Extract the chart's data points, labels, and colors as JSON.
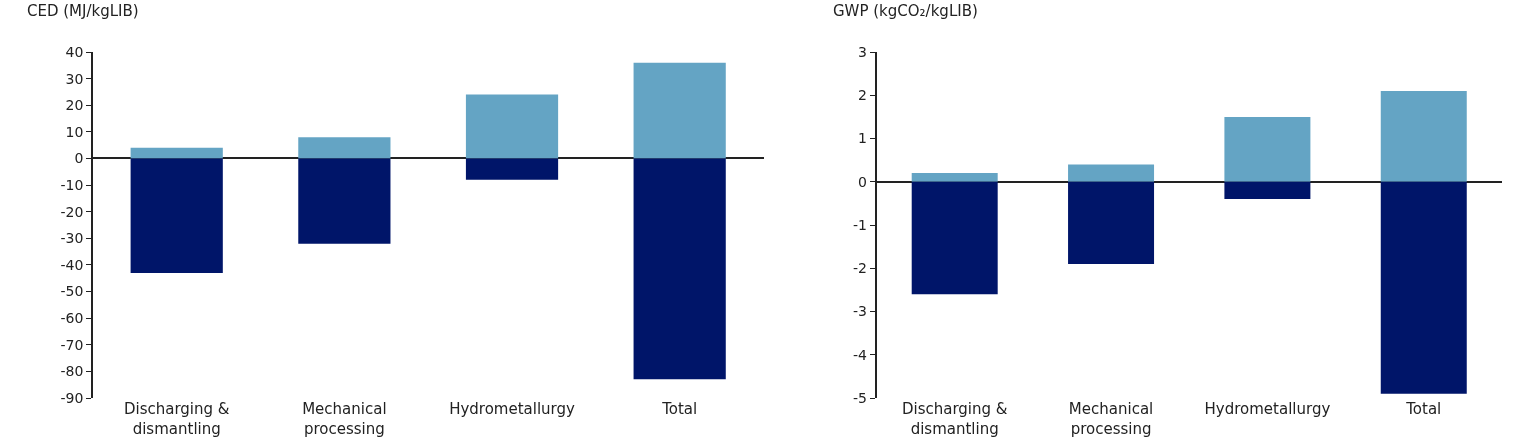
{
  "chart_data": [
    {
      "type": "bar",
      "ylabel": "CED (MJ/kgLIB)",
      "categories": [
        "Discharging &\ndismantling",
        "Mechanical\nprocessing",
        "Hydrometallurgy",
        "Total"
      ],
      "stacked": true,
      "series": [
        {
          "color": "#64a4c4",
          "values": [
            4,
            8,
            24,
            36
          ]
        },
        {
          "color": "#001569",
          "values": [
            -43,
            -32,
            -8,
            -83
          ]
        }
      ],
      "ylim": [
        -90,
        40
      ],
      "yticks": [
        -90,
        -80,
        -70,
        -60,
        -50,
        -40,
        -30,
        -20,
        -10,
        0,
        10,
        20,
        30,
        40
      ]
    },
    {
      "type": "bar",
      "ylabel": "GWP (kgCO₂/kgLIB)",
      "categories": [
        "Discharging &\ndismantling",
        "Mechanical\nprocessing",
        "Hydrometallurgy",
        "Total"
      ],
      "stacked": true,
      "series": [
        {
          "color": "#64a4c4",
          "values": [
            0.2,
            0.4,
            1.5,
            2.1
          ]
        },
        {
          "color": "#001569",
          "values": [
            -2.6,
            -1.9,
            -0.4,
            -4.9
          ]
        }
      ],
      "ylim": [
        -5,
        3
      ],
      "yticks": [
        -5,
        -4,
        -3,
        -2,
        -1,
        0,
        1,
        2,
        3
      ]
    }
  ]
}
